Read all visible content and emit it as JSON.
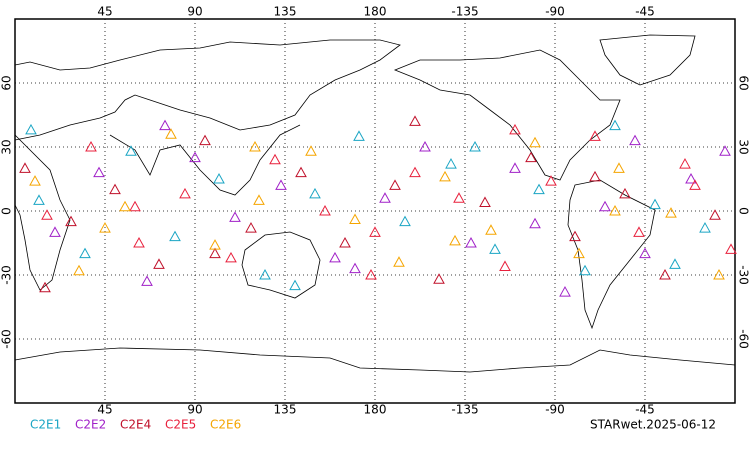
{
  "chart_data": {
    "type": "scatter",
    "xlim": [
      0,
      360
    ],
    "ylim": [
      -90,
      90
    ],
    "xticks": [
      45,
      90,
      135,
      180,
      {
        "value": 225,
        "label": "-135"
      },
      {
        "value": 270,
        "label": "-90"
      },
      {
        "value": 315,
        "label": "-45"
      }
    ],
    "yticks": [
      60,
      30,
      0,
      -30,
      -60
    ],
    "grid": true,
    "marker": "triangle",
    "legend": "bottom-left",
    "source_label": "STARwet.2025-06-12",
    "series": [
      {
        "name": "C2E1",
        "color": "#1aa5c4",
        "x": [
          12,
          35,
          58,
          80,
          102,
          125,
          150,
          172,
          195,
          218,
          240,
          262,
          285,
          300,
          320,
          345,
          8,
          140,
          230,
          330
        ],
        "y": [
          5,
          -20,
          28,
          -12,
          15,
          -30,
          8,
          35,
          -5,
          22,
          -18,
          10,
          -28,
          40,
          3,
          -8,
          38,
          -35,
          30,
          -25
        ]
      },
      {
        "name": "C2E2",
        "color": "#a020c8",
        "x": [
          20,
          42,
          66,
          90,
          110,
          133,
          160,
          185,
          205,
          228,
          250,
          275,
          295,
          315,
          338,
          355,
          75,
          170,
          260,
          310
        ],
        "y": [
          -10,
          18,
          -33,
          25,
          -3,
          12,
          -22,
          6,
          30,
          -15,
          20,
          -38,
          2,
          -20,
          15,
          28,
          40,
          -27,
          -6,
          33
        ]
      },
      {
        "name": "C2E4",
        "color": "#c0102a",
        "x": [
          5,
          28,
          50,
          72,
          95,
          118,
          143,
          165,
          190,
          212,
          235,
          258,
          280,
          305,
          325,
          350,
          100,
          200,
          290,
          15
        ],
        "y": [
          20,
          -5,
          10,
          -25,
          33,
          -8,
          18,
          -15,
          12,
          -32,
          4,
          25,
          -12,
          8,
          -30,
          -2,
          -20,
          42,
          16,
          -36
        ]
      },
      {
        "name": "C2E5",
        "color": "#e8203c",
        "x": [
          16,
          38,
          62,
          85,
          108,
          130,
          155,
          178,
          200,
          222,
          245,
          268,
          290,
          312,
          335,
          358,
          60,
          180,
          250,
          340
        ],
        "y": [
          -2,
          30,
          -15,
          8,
          -22,
          24,
          0,
          -30,
          18,
          6,
          -26,
          14,
          35,
          -10,
          22,
          -18,
          2,
          -10,
          38,
          12
        ]
      },
      {
        "name": "C2E6",
        "color": "#f5a500",
        "x": [
          10,
          32,
          55,
          78,
          100,
          122,
          148,
          170,
          192,
          215,
          238,
          260,
          282,
          302,
          328,
          352,
          45,
          120,
          220,
          300
        ],
        "y": [
          14,
          -28,
          2,
          36,
          -16,
          5,
          28,
          -4,
          -24,
          16,
          -9,
          32,
          -20,
          20,
          -1,
          -30,
          -8,
          30,
          -14,
          0
        ]
      }
    ]
  }
}
